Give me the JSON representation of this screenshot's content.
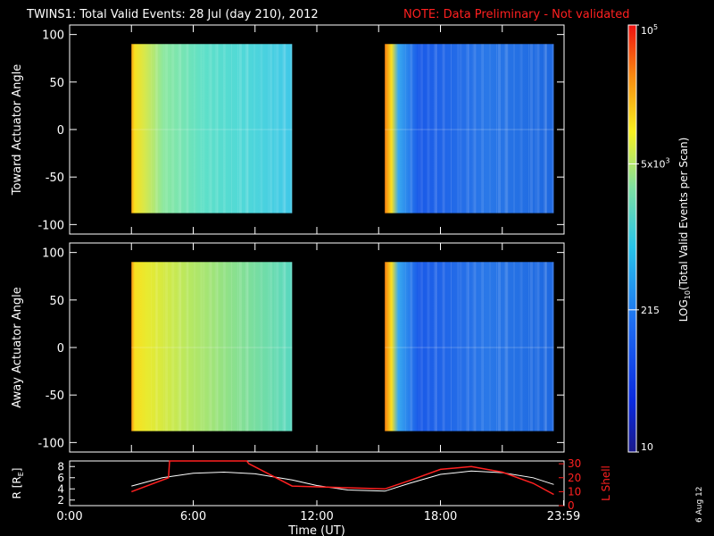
{
  "header": {
    "title": "TWINS1: Total Valid Events: 28 Jul (day 210), 2012",
    "note": "NOTE: Data Preliminary - Not validated"
  },
  "colors": {
    "background": "#000000",
    "axis": "#ffffff",
    "note": "#ff2020",
    "orbit_r": "#ffffff",
    "orbit_l": "#ff2020"
  },
  "chart_data": [
    {
      "type": "heatmap",
      "ylabel": "Toward Actuator Angle",
      "ylim": [
        -110,
        110
      ],
      "yticks": [
        "100",
        "50",
        "0",
        "-50",
        "-100"
      ],
      "ytick_values": [
        100,
        50,
        0,
        -50,
        -100
      ],
      "xlim": [
        0,
        24
      ],
      "data_blocks": [
        {
          "x_start": 3.0,
          "x_end": 10.8,
          "y_start": -88,
          "y_end": 90,
          "level": "high"
        },
        {
          "x_start": 15.3,
          "x_end": 23.5,
          "y_start": -88,
          "y_end": 90,
          "level": "low"
        }
      ],
      "grid": false
    },
    {
      "type": "heatmap",
      "ylabel": "Away Actuator Angle",
      "ylim": [
        -110,
        110
      ],
      "yticks": [
        "100",
        "50",
        "0",
        "-50",
        "-100"
      ],
      "ytick_values": [
        100,
        50,
        0,
        -50,
        -100
      ],
      "xlim": [
        0,
        24
      ],
      "data_blocks": [
        {
          "x_start": 3.0,
          "x_end": 10.8,
          "y_start": -88,
          "y_end": 90,
          "level": "high"
        },
        {
          "x_start": 15.3,
          "x_end": 23.5,
          "y_start": -88,
          "y_end": 90,
          "level": "low"
        }
      ],
      "grid": false
    },
    {
      "type": "line",
      "xlabel": "Time (UT)",
      "xticks": [
        "0:00",
        "6:00",
        "12:00",
        "18:00",
        "23:59"
      ],
      "xtick_values": [
        0,
        6,
        12,
        18,
        23.98
      ],
      "ylabel_left": "R [R",
      "ylabel_left_sub": "E",
      "ylabel_left_close": "]",
      "yticks_left": [
        "8",
        "6",
        "4",
        "2"
      ],
      "ylim_left": [
        1,
        9
      ],
      "ylabel_right": "L Shell",
      "yticks_right": [
        "30",
        "20",
        "10",
        "0"
      ],
      "ylim_right": [
        0,
        32
      ],
      "series": [
        {
          "name": "R",
          "axis": "left",
          "x": [
            3.0,
            4.5,
            6.0,
            7.5,
            9.0,
            10.8,
            12.0,
            13.5,
            15.3,
            16.5,
            18.0,
            19.5,
            21.0,
            22.5,
            23.5
          ],
          "y": [
            4.5,
            6.0,
            6.8,
            7.0,
            6.7,
            5.6,
            4.6,
            3.8,
            3.6,
            5.0,
            6.6,
            7.2,
            6.9,
            6.0,
            4.8
          ]
        },
        {
          "name": "L Shell",
          "axis": "right",
          "x": [
            3.0,
            4.8,
            4.85,
            8.6,
            8.7,
            10.8,
            15.3,
            16.5,
            18.0,
            19.5,
            21.0,
            22.5,
            23.5
          ],
          "y": [
            10,
            20,
            32,
            32,
            30,
            14,
            12,
            18,
            26,
            28,
            24,
            16,
            8
          ]
        }
      ]
    },
    {
      "type": "heatmap",
      "role": "colorbar",
      "label": "LOG",
      "label_sub": "10",
      "label_rest": "(Total Valid Events per Scan)",
      "tick_values": [
        1.0,
        2.332,
        3.699,
        5.0
      ],
      "ticks": [
        {
          "base": "10",
          "exp": ""
        },
        {
          "base": "215",
          "exp": ""
        },
        {
          "base": "5x10",
          "exp": "3"
        },
        {
          "base": "10",
          "exp": "5"
        }
      ],
      "range": [
        1.0,
        5.0
      ]
    }
  ],
  "side_date": "6 Aug 12"
}
